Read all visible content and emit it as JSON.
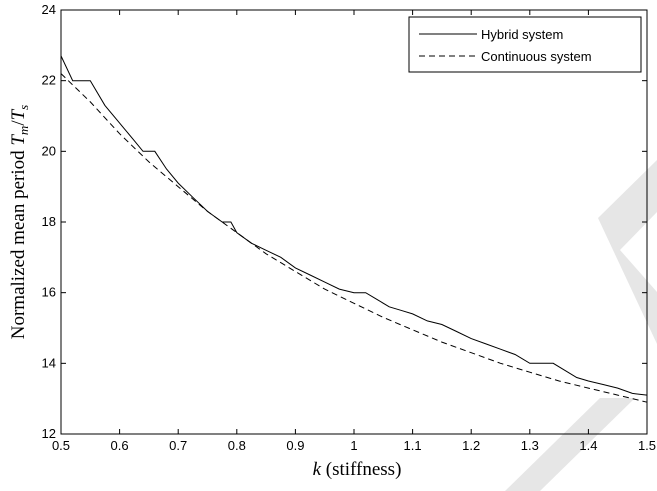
{
  "chart_data": {
    "type": "line",
    "title": "",
    "xlabel": "k (stiffness)",
    "xlabel_italic": "k",
    "xlabel_rest": " (stiffness)",
    "ylabel": "Normalized mean period Tm/Ts",
    "ylabel_prefix": "Normalized mean period ",
    "ylabel_T1": "T",
    "ylabel_sub1": "m",
    "ylabel_slash": "/",
    "ylabel_T2": "T",
    "ylabel_sub2": "s",
    "xlim": [
      0.5,
      1.5
    ],
    "ylim": [
      12,
      24
    ],
    "x_ticks": [
      0.5,
      0.6,
      0.7,
      0.8,
      0.9,
      1,
      1.1,
      1.2,
      1.3,
      1.4,
      1.5
    ],
    "x_tick_labels": [
      "0.5",
      "0.6",
      "0.7",
      "0.8",
      "0.9",
      "1",
      "1.1",
      "1.2",
      "1.3",
      "1.4",
      "1.5"
    ],
    "y_ticks": [
      12,
      14,
      16,
      18,
      20,
      22,
      24
    ],
    "y_tick_labels": [
      "12",
      "14",
      "16",
      "18",
      "20",
      "22",
      "24"
    ],
    "grid": false,
    "legend_position": "top-right",
    "series": [
      {
        "name": "Hybrid system",
        "style": "solid",
        "color": "#000000",
        "x": [
          0.5,
          0.52,
          0.55,
          0.575,
          0.6,
          0.625,
          0.64,
          0.66,
          0.68,
          0.7,
          0.725,
          0.75,
          0.775,
          0.79,
          0.8,
          0.825,
          0.85,
          0.875,
          0.9,
          0.925,
          0.95,
          0.975,
          1.0,
          1.02,
          1.04,
          1.06,
          1.08,
          1.1,
          1.125,
          1.15,
          1.175,
          1.2,
          1.225,
          1.25,
          1.275,
          1.3,
          1.32,
          1.34,
          1.36,
          1.38,
          1.4,
          1.425,
          1.45,
          1.475,
          1.5
        ],
        "y": [
          22.7,
          22.0,
          22.0,
          21.3,
          20.8,
          20.3,
          20.0,
          20.0,
          19.5,
          19.1,
          18.7,
          18.3,
          18.0,
          18.0,
          17.7,
          17.4,
          17.2,
          17.0,
          16.7,
          16.5,
          16.3,
          16.1,
          16.0,
          16.0,
          15.8,
          15.6,
          15.5,
          15.4,
          15.2,
          15.1,
          14.9,
          14.7,
          14.55,
          14.4,
          14.25,
          14.0,
          14.0,
          14.0,
          13.8,
          13.6,
          13.5,
          13.4,
          13.3,
          13.15,
          13.1
        ]
      },
      {
        "name": "Continuous system",
        "style": "dashed",
        "color": "#000000",
        "x": [
          0.5,
          0.55,
          0.6,
          0.65,
          0.7,
          0.75,
          0.8,
          0.85,
          0.9,
          0.95,
          1.0,
          1.05,
          1.1,
          1.15,
          1.2,
          1.25,
          1.3,
          1.35,
          1.4,
          1.45,
          1.5
        ],
        "y": [
          22.2,
          21.4,
          20.5,
          19.7,
          19.0,
          18.3,
          17.7,
          17.1,
          16.6,
          16.1,
          15.7,
          15.3,
          14.95,
          14.6,
          14.3,
          14.0,
          13.75,
          13.5,
          13.3,
          13.1,
          12.9
        ]
      }
    ]
  }
}
